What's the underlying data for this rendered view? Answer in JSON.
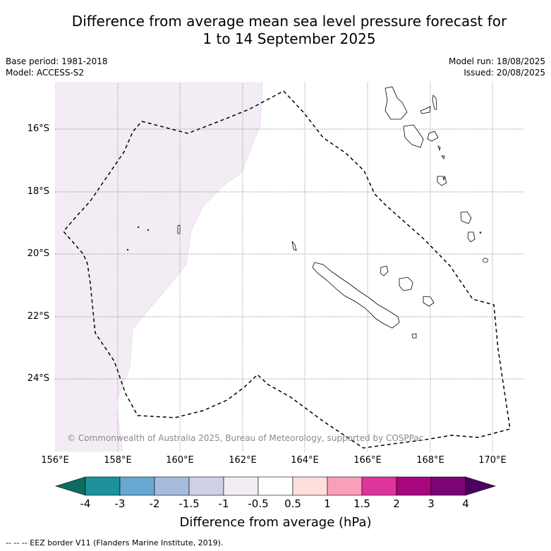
{
  "title_line1": "Difference from average mean sea level pressure forecast for",
  "title_line2": "1 to 14 September 2025",
  "meta": {
    "base_period": "Base period: 1981-2018",
    "model": "Model: ACCESS-S2",
    "model_run": "Model run: 18/08/2025",
    "issued": "Issued: 20/08/2025"
  },
  "map": {
    "lat_labels": [
      "16°S",
      "18°S",
      "20°S",
      "22°S",
      "24°S"
    ],
    "lon_labels": [
      "156°E",
      "158°E",
      "160°E",
      "162°E",
      "164°E",
      "166°E",
      "168°E",
      "170°E"
    ],
    "copyright": "© Commonwealth of Australia 2025, Bureau of Meteorology, supported by COSPPac",
    "anomaly_fill_color": "#f3ecf5",
    "coast_color": "#000000",
    "eez_style": "dashed"
  },
  "colorbar": {
    "ticks": [
      "-4",
      "-3",
      "-2",
      "-1.5",
      "-1",
      "-0.5",
      "0.5",
      "1",
      "1.5",
      "2",
      "3",
      "4"
    ],
    "colors": [
      "#0e6b62",
      "#1c929c",
      "#67a9d0",
      "#a6bcdc",
      "#cfd0e6",
      "#f3ecf5",
      "#ffffff",
      "#fde0dd",
      "#f99fb9",
      "#de359c",
      "#a8067f",
      "#7c0474",
      "#4a0060"
    ],
    "label": "Difference from average (hPa)"
  },
  "footnote": "--  --  -- EEZ border V11 (Flanders Marine Institute, 2019)."
}
